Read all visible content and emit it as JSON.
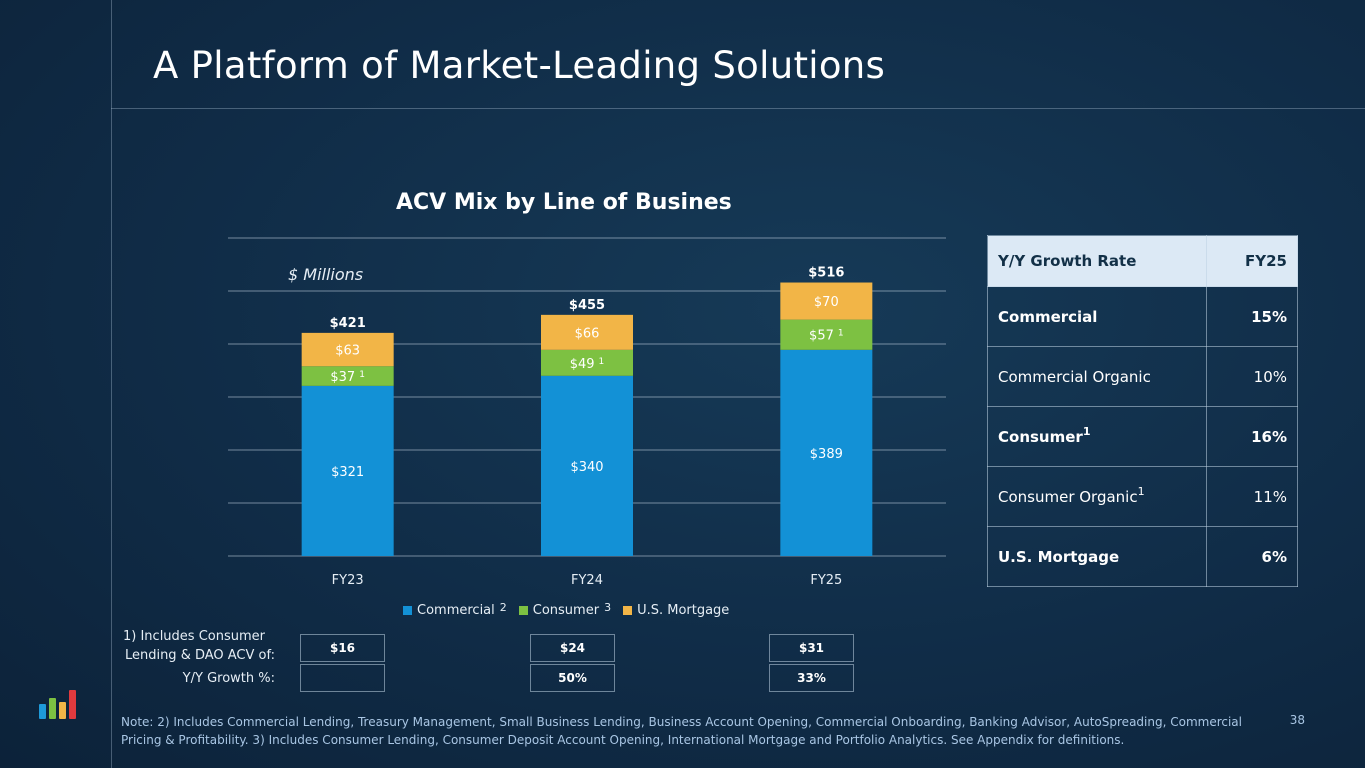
{
  "page": {
    "title": "A Platform of Market-Leading Solutions",
    "page_number": "38"
  },
  "chart_data": {
    "type": "bar",
    "stacked": true,
    "title": "ACV Mix by Line of Busines",
    "units_label": "$ Millions",
    "categories": [
      "FY23",
      "FY24",
      "FY25"
    ],
    "ylim": [
      0,
      600
    ],
    "grid": true,
    "legend_position": "bottom",
    "series": [
      {
        "name": "Commercial",
        "legend_sup": "2",
        "color": "#1391d6",
        "values": [
          321,
          340,
          389
        ],
        "labels": [
          "$321",
          "$340",
          "$389"
        ],
        "label_sup": [
          "",
          "",
          ""
        ]
      },
      {
        "name": "Consumer",
        "legend_sup": "3",
        "color": "#7dc142",
        "values": [
          37,
          49,
          57
        ],
        "labels": [
          "$37",
          "$49",
          "$57"
        ],
        "label_sup": [
          "1",
          "1",
          "1"
        ]
      },
      {
        "name": "U.S. Mortgage",
        "legend_sup": "",
        "color": "#f2b547",
        "values": [
          63,
          66,
          70
        ],
        "labels": [
          "$63",
          "$66",
          "$70"
        ],
        "label_sup": [
          "",
          "",
          ""
        ]
      }
    ],
    "totals": [
      "$421",
      "$455",
      "$516"
    ]
  },
  "growth_table": {
    "header": [
      "Y/Y Growth Rate",
      "FY25"
    ],
    "rows": [
      {
        "label": "Commercial",
        "sup": "",
        "value": "15%",
        "bold": true
      },
      {
        "label": "Commercial Organic",
        "sup": "",
        "value": "10%",
        "bold": false
      },
      {
        "label": "Consumer",
        "sup": "1",
        "value": "16%",
        "bold": true
      },
      {
        "label": "Consumer Organic",
        "sup": "1",
        "value": "11%",
        "bold": false
      },
      {
        "label": "U.S. Mortgage",
        "sup": "",
        "value": "6%",
        "bold": true
      }
    ]
  },
  "footnote": {
    "label_line1": "1) Includes Consumer",
    "label_line2": "Lending & DAO ACV of:",
    "growth_label": "Y/Y Growth %:",
    "acv_values": [
      "$16",
      "$24",
      "$31"
    ],
    "growth_values": [
      "",
      "50%",
      "33%"
    ]
  },
  "note": "Note: 2) Includes Commercial Lending, Treasury Management, Small Business Lending, Business Account Opening, Commercial Onboarding, Banking Advisor, AutoSpreading, Commercial Pricing & Profitability. 3) Includes Consumer Lending, Consumer Deposit Account Opening, International Mortgage and Portfolio Analytics. See Appendix for definitions.",
  "logo": {
    "colors": [
      "#1e9ad9",
      "#7dc142",
      "#f2b547",
      "#e03a3e"
    ]
  }
}
